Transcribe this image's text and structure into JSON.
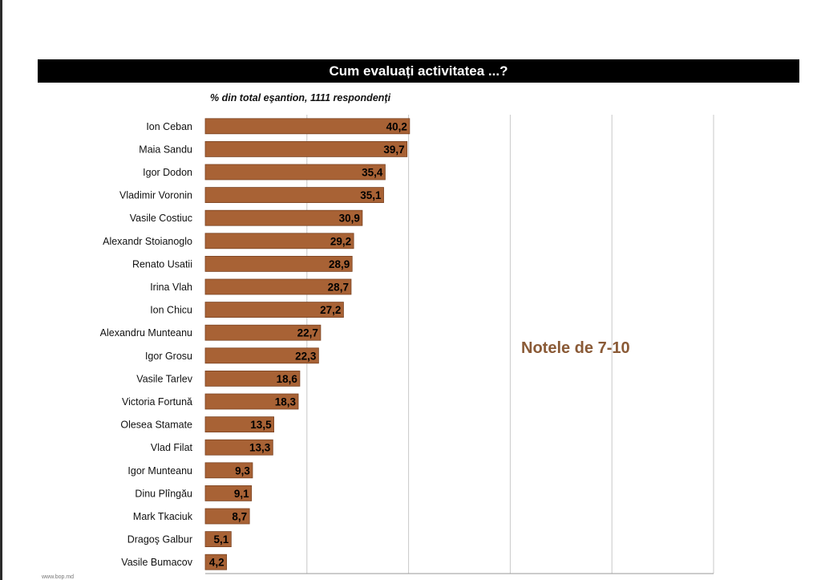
{
  "header": {
    "title": "Cum evaluați activitatea ...?"
  },
  "subtitle": "% din total eşantion, 1111 respondenţi",
  "annotation": "Notele de 7-10",
  "source": "www.bop.md",
  "colors": {
    "bar": "#a86235",
    "bar_edge": "#7a4322",
    "grid": "#c8c8c8",
    "annotation": "#8a5a36"
  },
  "chart_data": {
    "type": "bar",
    "orientation": "horizontal",
    "title": "Cum evaluați activitatea ...?",
    "subtitle": "% din total eşantion, 1111 respondenţi",
    "categories": [
      "Ion Ceban",
      "Maia Sandu",
      "Igor Dodon",
      "Vladimir Voronin",
      "Vasile Costiuc",
      "Alexandr Stoianoglo",
      "Renato Usatii",
      "Irina  Vlah",
      "Ion Chicu",
      "Alexandru Munteanu",
      "Igor Grosu",
      "Vasile Tarlev",
      "Victoria Fortună",
      "Olesea Stamate",
      "Vlad Filat",
      "Igor Munteanu",
      "Dinu Plîngău",
      "Mark Tkaciuk",
      "Dragoş Galbur",
      "Vasile Bumacov"
    ],
    "values": [
      40.2,
      39.7,
      35.4,
      35.1,
      30.9,
      29.2,
      28.9,
      28.7,
      27.2,
      22.7,
      22.3,
      18.6,
      18.3,
      13.5,
      13.3,
      9.3,
      9.1,
      8.7,
      5.1,
      4.2
    ],
    "value_labels": [
      "40,2",
      "39,7",
      "35,4",
      "35,1",
      "30,9",
      "29,2",
      "28,9",
      "28,7",
      "27,2",
      "22,7",
      "22,3",
      "18,6",
      "18,3",
      "13,5",
      "13,3",
      "9,3",
      "9,1",
      "8,7",
      "5,1",
      "4,2"
    ],
    "xlim": [
      0,
      100
    ],
    "grid": true,
    "data_labels": "inside-end"
  }
}
